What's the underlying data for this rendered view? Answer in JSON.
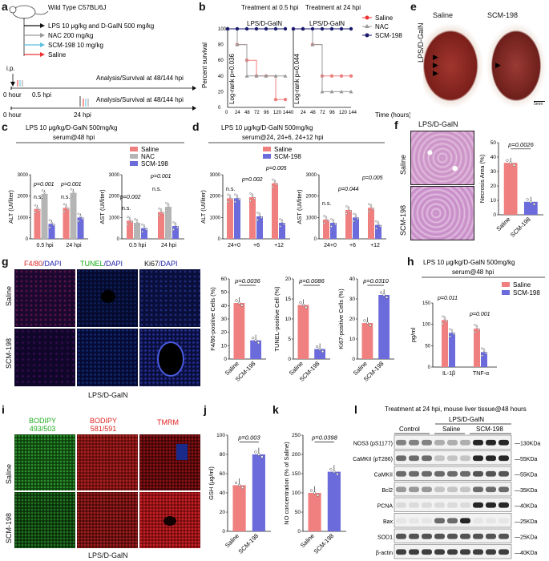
{
  "colors": {
    "saline": "#f08080",
    "nac": "#b5b5b5",
    "scm": "#6b6bdb",
    "scm_dark": "#1a1a6e"
  },
  "panels": {
    "a": "a",
    "b": "b",
    "c": "c",
    "d": "d",
    "e": "e",
    "f": "f",
    "g": "g",
    "h": "h",
    "i": "i",
    "j": "j",
    "k": "k",
    "l": "l"
  },
  "a": {
    "mouse": "Wild Type C57BL/6J",
    "legend": [
      "LPS 10 μg/kg and D-GalN 500 mg/kg",
      "NAC 200 mg/kg",
      "SCM-198 10 mg/kg",
      "Saline"
    ],
    "ip": "i.p.",
    "t0": "0 hour",
    "t05": "0.5 hpi",
    "t24": "24 hpi",
    "analysis": "Analysis/Survival at 48/144 hpi"
  },
  "b": {
    "title1": "Treatment at 0.5 hpi",
    "title2": "Treatment at 24 hpi",
    "label": "LPS/D-GalN",
    "ylabel": "Percent survival",
    "xlabel": "Time (hours)",
    "p1": "Log-rank p=0.036",
    "p2": "Log-rank p=0.044",
    "legend": [
      "Saline",
      "NAC",
      "SCM-198"
    ],
    "xticks": [
      "0",
      "24",
      "48",
      "72",
      "96",
      "120",
      "144"
    ],
    "yticks": [
      "0",
      "20",
      "40",
      "60",
      "80",
      "100"
    ]
  },
  "c": {
    "title": "LPS 10 μg/kg/D-GalN 500mg/kg",
    "subtitle": "serum@48 hpi",
    "legend": [
      "Saline",
      "NAC",
      "SCM-198"
    ],
    "ylabel1": "ALT (UI/liter)",
    "ylabel2": "AST (UI/liter)",
    "groups": [
      "0.5 hpi",
      "24 hpi"
    ],
    "ns": "n.s.",
    "p_alt": [
      "p=0.001",
      "p=0.001"
    ],
    "p_ast": [
      "p=0.002",
      "p=0.001"
    ],
    "yt": [
      "0",
      "1000",
      "2000",
      "3000"
    ]
  },
  "d": {
    "title": "LPS 10 μg/kg/D-GalN 500mg/kg",
    "subtitle": "serum@24, 24+6, 24+12 hpi",
    "legend": [
      "Saline",
      "SCM-198"
    ],
    "ylabel1": "ALT (UI/liter)",
    "ylabel2": "AST (UI/liter)",
    "groups": [
      "24+0",
      "+6",
      "+12"
    ],
    "ns": "n.s.",
    "p_alt": [
      "p=0.002",
      "p=0.005"
    ],
    "p_ast": [
      "p=0.044",
      "p=0.005"
    ],
    "yt": [
      "0",
      "1000",
      "2000",
      "3000"
    ]
  },
  "e": {
    "labels": [
      "Saline",
      "SCM-198"
    ],
    "side": "LPS/D-GalN",
    "scale": "5mm"
  },
  "f": {
    "title": "LPS/D-GalN",
    "rows": [
      "Saline",
      "SCM-198"
    ],
    "ylabel": "Necrosis Area (%)",
    "p": "p=0.0026",
    "yt": [
      "0",
      "10",
      "20",
      "30",
      "40",
      "50"
    ],
    "x": [
      "Saline",
      "SCM-198"
    ]
  },
  "g": {
    "col1": "F4/80/DAPI",
    "col1a": "F4/80",
    "col1b": "/DAPI",
    "col2": "TUNEL/DAPI",
    "col2a": "TUNEL",
    "col2b": "/DAPI",
    "col3": "Ki67/DAPI",
    "col3a": "Ki67",
    "col3b": "/DAPI",
    "rows": [
      "Saline",
      "SCM-198"
    ],
    "bottom": "LPS/D-GalN",
    "charts": [
      {
        "ylabel": "F4/80-positive Cells (%)",
        "p": "p=0.0036",
        "yt": [
          "0",
          "10",
          "20",
          "30",
          "40",
          "50",
          "60"
        ]
      },
      {
        "ylabel": "TUNEL-positive Cell (%)",
        "p": "p=0.0086",
        "yt": [
          "0",
          "5",
          "10",
          "15",
          "20"
        ]
      },
      {
        "ylabel": "Ki67-positive Cells (%)",
        "p": "p=0.0310",
        "yt": [
          "0",
          "10",
          "20",
          "30",
          "40"
        ]
      }
    ],
    "x": [
      "Saline",
      "SCM-198"
    ]
  },
  "h": {
    "title": "LPS 10 μg/kg/D-GalN 500mg/kg",
    "subtitle": "serum@48 hpi",
    "legend": [
      "Saline",
      "SCM-198"
    ],
    "ylabel": "pg/ml",
    "groups": [
      "IL-1β",
      "TNF-α"
    ],
    "p": [
      "p=0.011",
      "p=0.001"
    ],
    "yt": [
      "0",
      "50",
      "100",
      "150"
    ]
  },
  "i": {
    "col1": "BODIPY",
    "col1b": "493/503",
    "col2": "BODIPY",
    "col2b": "581/591",
    "col3": "TMRM",
    "rows": [
      "Saline",
      "SCM-198"
    ],
    "bottom": "LPS/D-GalN"
  },
  "j": {
    "ylabel": "GSH (μg/ml)",
    "p": "p=0.003",
    "yt": [
      "0",
      "20",
      "40",
      "60",
      "80",
      "100"
    ],
    "x": [
      "Saline",
      "SCM-198"
    ]
  },
  "k": {
    "ylabel": "NO concentration (% of Saline)",
    "p": "p=0.0398",
    "yt": [
      "0",
      "50",
      "100",
      "150",
      "200",
      "250"
    ],
    "x": [
      "Saline",
      "SCM-198"
    ]
  },
  "l": {
    "title": "Treatment at 24 hpi, mouse liver tissue@48 hours",
    "group": "LPS/D-GalN",
    "cols": [
      "Control",
      "Saline",
      "SCM-198"
    ],
    "bands": [
      "NOS3 (pS1177)",
      "CaMKII (pT286)",
      "CaMKII",
      "Bcl2",
      "PCNA",
      "Bax",
      "SOD1",
      "β-actin"
    ],
    "kda": [
      "130KDa",
      "55KDa",
      "55KDa",
      "35KDa",
      "40KDa",
      "25KDa",
      "25KDa",
      "40KDa"
    ]
  },
  "chart_data": [
    {
      "type": "line",
      "panel": "b-left",
      "title": "Treatment at 0.5 hpi",
      "ylabel": "Percent survival",
      "xlabel": "Time (hours)",
      "ylim": [
        0,
        100
      ],
      "xlim": [
        0,
        144
      ],
      "series": [
        {
          "name": "Saline",
          "x": [
            0,
            24,
            48,
            72,
            96,
            120,
            144
          ],
          "values": [
            100,
            80,
            60,
            40,
            40,
            10,
            10
          ]
        },
        {
          "name": "NAC",
          "x": [
            0,
            24,
            48,
            72,
            96,
            120,
            144
          ],
          "values": [
            100,
            80,
            40,
            40,
            40,
            40,
            40
          ]
        },
        {
          "name": "SCM-198",
          "x": [
            0,
            24,
            48,
            72,
            96,
            120,
            144
          ],
          "values": [
            100,
            100,
            100,
            100,
            100,
            100,
            100
          ]
        }
      ]
    },
    {
      "type": "line",
      "panel": "b-right",
      "title": "Treatment at 24 hpi",
      "ylim": [
        0,
        100
      ],
      "xlim": [
        0,
        144
      ],
      "series": [
        {
          "name": "Saline",
          "x": [
            0,
            24,
            48,
            72,
            96,
            120,
            144
          ],
          "values": [
            100,
            100,
            80,
            40,
            40,
            40,
            40
          ]
        },
        {
          "name": "NAC",
          "x": [
            0,
            24,
            48,
            72,
            96,
            120,
            144
          ],
          "values": [
            100,
            100,
            80,
            20,
            20,
            20,
            20
          ]
        },
        {
          "name": "SCM-198",
          "x": [
            0,
            24,
            48,
            72,
            96,
            120,
            144
          ],
          "values": [
            100,
            100,
            100,
            100,
            100,
            100,
            100
          ]
        }
      ]
    },
    {
      "type": "bar",
      "panel": "c-ALT",
      "categories": [
        "0.5 hpi",
        "24 hpi"
      ],
      "ylim": [
        0,
        3000
      ],
      "series": [
        {
          "name": "Saline",
          "values": [
            1400,
            1450
          ]
        },
        {
          "name": "NAC",
          "values": [
            2100,
            2150
          ]
        },
        {
          "name": "SCM-198",
          "values": [
            700,
            1000
          ]
        }
      ]
    },
    {
      "type": "bar",
      "panel": "c-AST",
      "categories": [
        "0.5 hpi",
        "24 hpi"
      ],
      "ylim": [
        0,
        3000
      ],
      "series": [
        {
          "name": "Saline",
          "values": [
            850,
            1250
          ]
        },
        {
          "name": "NAC",
          "values": [
            750,
            1500
          ]
        },
        {
          "name": "SCM-198",
          "values": [
            500,
            600
          ]
        }
      ]
    },
    {
      "type": "bar",
      "panel": "d-ALT",
      "categories": [
        "24+0",
        "+6",
        "+12"
      ],
      "ylim": [
        0,
        3000
      ],
      "series": [
        {
          "name": "Saline",
          "values": [
            1900,
            1950,
            2600
          ]
        },
        {
          "name": "SCM-198",
          "values": [
            1900,
            1050,
            750
          ]
        }
      ]
    },
    {
      "type": "bar",
      "panel": "d-AST",
      "categories": [
        "24+0",
        "+6",
        "+12"
      ],
      "ylim": [
        0,
        3000
      ],
      "series": [
        {
          "name": "Saline",
          "values": [
            900,
            1350,
            1450
          ]
        },
        {
          "name": "SCM-198",
          "values": [
            750,
            1000,
            650
          ]
        }
      ]
    },
    {
      "type": "bar",
      "panel": "f",
      "categories": [
        "Saline",
        "SCM-198"
      ],
      "ylim": [
        0,
        50
      ],
      "values": [
        36,
        9
      ]
    },
    {
      "type": "bar",
      "panel": "g-F4/80",
      "categories": [
        "Saline",
        "SCM-198"
      ],
      "ylim": [
        0,
        60
      ],
      "values": [
        42,
        14
      ]
    },
    {
      "type": "bar",
      "panel": "g-TUNEL",
      "categories": [
        "Saline",
        "SCM-198"
      ],
      "ylim": [
        0,
        20
      ],
      "values": [
        13.5,
        2.5
      ]
    },
    {
      "type": "bar",
      "panel": "g-Ki67",
      "categories": [
        "Saline",
        "SCM-198"
      ],
      "ylim": [
        0,
        40
      ],
      "values": [
        18,
        32
      ]
    },
    {
      "type": "bar",
      "panel": "h",
      "categories": [
        "IL-1β",
        "TNF-α"
      ],
      "ylim": [
        0,
        150
      ],
      "series": [
        {
          "name": "Saline",
          "values": [
            110,
            90
          ]
        },
        {
          "name": "SCM-198",
          "values": [
            80,
            35
          ]
        }
      ]
    },
    {
      "type": "bar",
      "panel": "j",
      "categories": [
        "Saline",
        "SCM-198"
      ],
      "ylim": [
        0,
        100
      ],
      "values": [
        48,
        80
      ]
    },
    {
      "type": "bar",
      "panel": "k",
      "categories": [
        "Saline",
        "SCM-198"
      ],
      "ylim": [
        0,
        250
      ],
      "values": [
        100,
        155
      ]
    }
  ]
}
